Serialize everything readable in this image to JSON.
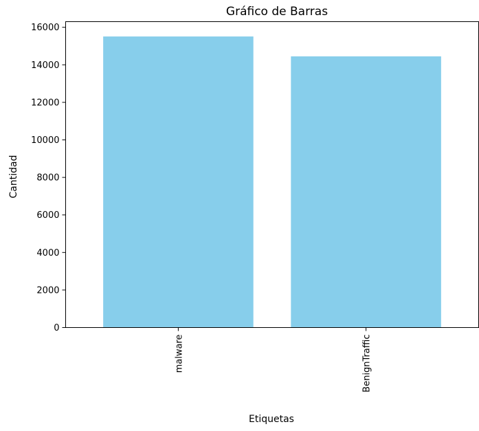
{
  "chart_data": {
    "type": "bar",
    "title": "Gráfico de Barras",
    "xlabel": "Etiquetas",
    "ylabel": "Cantidad",
    "categories": [
      "malware",
      "BenignTraffic"
    ],
    "values": [
      15510,
      14450
    ],
    "ylim": [
      0,
      16300
    ],
    "yticks": [
      0,
      2000,
      4000,
      6000,
      8000,
      10000,
      12000,
      14000,
      16000
    ],
    "bar_color": "#87ceeb",
    "grid": false,
    "legend": "none"
  }
}
